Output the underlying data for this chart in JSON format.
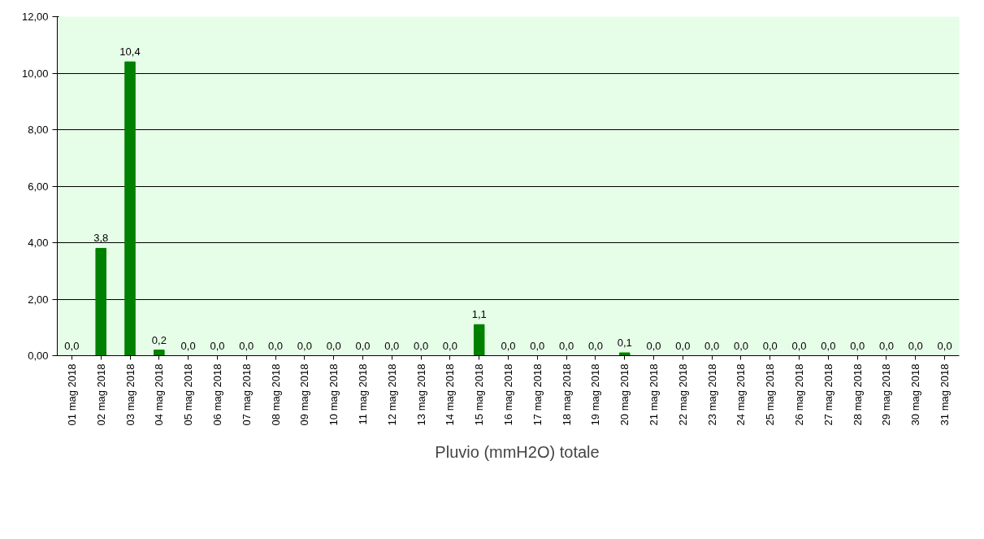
{
  "chart_data": {
    "type": "bar",
    "categories": [
      "01 mag 2018",
      "02 mag 2018",
      "03 mag 2018",
      "04 mag 2018",
      "05 mag 2018",
      "06 mag 2018",
      "07 mag 2018",
      "08 mag 2018",
      "09 mag 2018",
      "10 mag 2018",
      "11 mag 2018",
      "12 mag 2018",
      "13 mag 2018",
      "14 mag 2018",
      "15 mag 2018",
      "16 mag 2018",
      "17 mag 2018",
      "18 mag 2018",
      "19 mag 2018",
      "20 mag 2018",
      "21 mag 2018",
      "22 mag 2018",
      "23 mag 2018",
      "24 mag 2018",
      "25 mag 2018",
      "26 mag 2018",
      "27 mag 2018",
      "28 mag 2018",
      "29 mag 2018",
      "30 mag 2018",
      "31 mag 2018"
    ],
    "series": [
      {
        "name": "Pluvio (mmH2O) totale",
        "color": "#008000",
        "values": [
          0.0,
          3.8,
          10.4,
          0.2,
          0.0,
          0.0,
          0.0,
          0.0,
          0.0,
          0.0,
          0.0,
          0.0,
          0.0,
          0.0,
          1.1,
          0.0,
          0.0,
          0.0,
          0.0,
          0.1,
          0.0,
          0.0,
          0.0,
          0.0,
          0.0,
          0.0,
          0.0,
          0.0,
          0.0,
          0.0,
          0.0
        ],
        "value_labels": [
          "0,0",
          "3,8",
          "10,4",
          "0,2",
          "0,0",
          "0,0",
          "0,0",
          "0,0",
          "0,0",
          "0,0",
          "0,0",
          "0,0",
          "0,0",
          "0,0",
          "1,1",
          "0,0",
          "0,0",
          "0,0",
          "0,0",
          "0,1",
          "0,0",
          "0,0",
          "0,0",
          "0,0",
          "0,0",
          "0,0",
          "0,0",
          "0,0",
          "0,0",
          "0,0",
          "0,0"
        ]
      }
    ],
    "ylim": [
      0,
      12
    ],
    "yticks": [
      {
        "value": 0,
        "label": "0,00"
      },
      {
        "value": 2,
        "label": "2,00"
      },
      {
        "value": 4,
        "label": "4,00"
      },
      {
        "value": 6,
        "label": "6,00"
      },
      {
        "value": 8,
        "label": "8,00"
      },
      {
        "value": 10,
        "label": "10,00"
      },
      {
        "value": 12,
        "label": "12,00"
      }
    ],
    "grid": "y",
    "legend": "bottom"
  }
}
